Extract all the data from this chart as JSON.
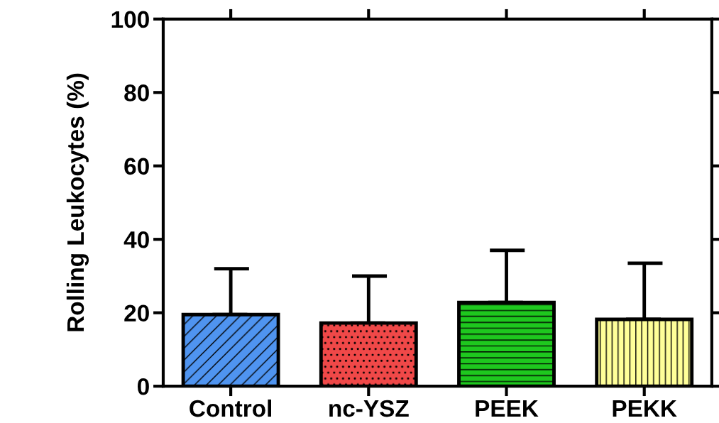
{
  "chart_data": {
    "type": "bar",
    "ylabel": "Rolling Leukocytes (%)",
    "categories": [
      "Control",
      "nc-YSZ",
      "PEEK",
      "PEKK"
    ],
    "values": [
      19.5,
      17.2,
      22.8,
      18.2
    ],
    "colors": [
      "#4f94f0",
      "#f04848",
      "#1ec81e",
      "#ffff99"
    ],
    "errors": [
      [
        19.5,
        32
      ],
      [
        17.2,
        30
      ],
      [
        22.8,
        37
      ],
      [
        18.2,
        33.5
      ]
    ],
    "ylim": [
      0,
      100
    ],
    "yticks": [
      0,
      20,
      40,
      60,
      80,
      100
    ],
    "grid": false,
    "legend": false
  }
}
